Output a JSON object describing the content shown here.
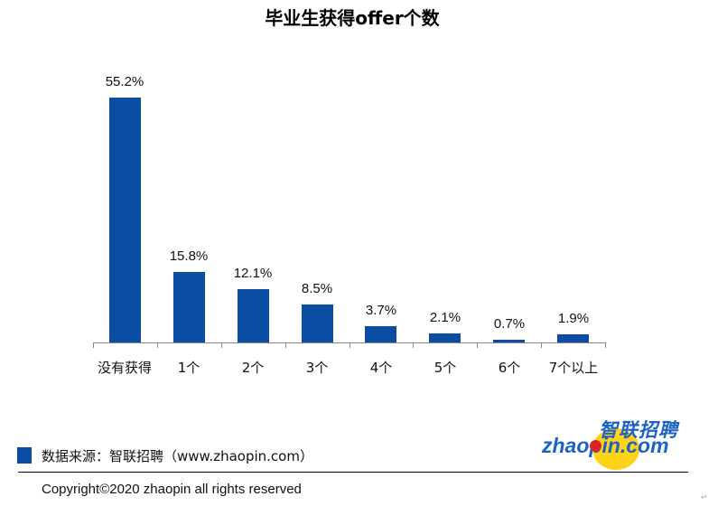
{
  "chart_data": {
    "type": "bar",
    "title": "毕业生获得offer个数",
    "categories": [
      "没有获得",
      "1个",
      "2个",
      "3个",
      "4个",
      "5个",
      "6个",
      "7个以上"
    ],
    "values": [
      55.2,
      15.8,
      12.1,
      8.5,
      3.7,
      2.1,
      0.7,
      1.9
    ],
    "value_labels": [
      "55.2%",
      "15.8%",
      "12.1%",
      "8.5%",
      "3.7%",
      "2.1%",
      "0.7%",
      "1.9%"
    ],
    "xlabel": "",
    "ylabel": "",
    "unit": "%",
    "ylim": [
      0,
      60
    ],
    "grid": false,
    "legend_position": "bottom-left",
    "bar_color": "#0A4DA2"
  },
  "footer": {
    "source": "数据来源：智联招聘（www.zhaopin.com）",
    "copyright": "Copyright©2020 zhaopin all rights reserved"
  },
  "logo": {
    "cn": "智联招聘",
    "en": "zhaopin.com"
  }
}
